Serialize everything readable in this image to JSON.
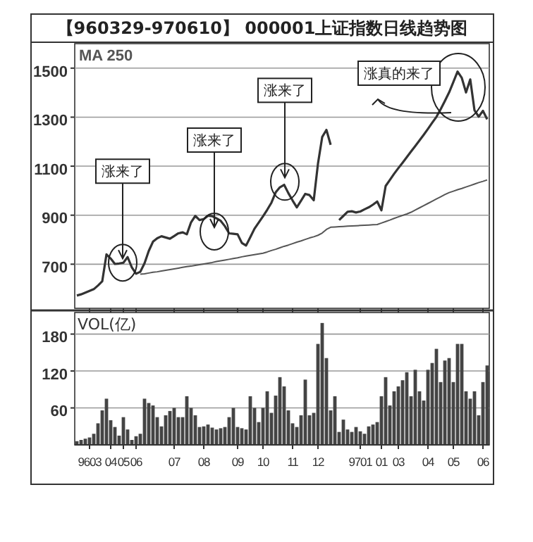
{
  "chart_data": [
    {
      "type": "line",
      "title": "【960329-970610】 000001上证指数日线趋势图",
      "categories": [
        null,
        null,
        null,
        "9603",
        null,
        null,
        null,
        null,
        "04",
        null,
        null,
        "05",
        null,
        null,
        "06",
        null,
        null,
        null,
        null,
        null,
        null,
        null,
        null,
        "07",
        null,
        null,
        null,
        null,
        null,
        null,
        "08",
        null,
        null,
        null,
        null,
        null,
        null,
        null,
        "09",
        null,
        null,
        null,
        null,
        null,
        "10",
        null,
        null,
        null,
        null,
        null,
        null,
        "11",
        null,
        null,
        null,
        null,
        null,
        "12",
        null,
        null,
        null,
        null,
        null,
        null,
        null,
        null,
        null,
        "9701",
        null,
        null,
        null,
        null,
        "01",
        null,
        null,
        null,
        "03",
        null,
        null,
        null,
        null,
        null,
        null,
        "04",
        null,
        null,
        null,
        null,
        null,
        "05",
        null,
        null,
        null,
        null,
        null,
        null,
        "06",
        null
      ],
      "ylim": [
        520,
        1600
      ],
      "yticks": [
        700,
        900,
        1100,
        1300,
        1500
      ],
      "grid": "y",
      "tick_labels": "y",
      "legend": "top left",
      "series": [
        {
          "color": "#333333",
          "values": [
            572,
            577,
            584,
            591,
            598,
            613,
            630,
            740,
            723,
            701,
            703,
            706,
            729,
            687,
            661,
            669,
            704,
            754,
            792,
            806,
            814,
            809,
            804,
            815,
            826,
            830,
            822,
            871,
            897,
            880,
            884,
            898,
            896,
            887,
            877,
            855,
            826,
            824,
            822,
            787,
            776,
            810,
            845,
            870,
            895,
            922,
            951,
            993,
            1014,
            1024,
            990,
            960,
            932,
            959,
            987,
            982,
            961,
            1110,
            1219,
            1248,
            1187,
            null,
            880,
            897,
            914,
            916,
            911,
            915,
            924,
            932,
            943,
            956,
            920,
            1019,
            1044,
            1069,
            1092,
            1114,
            1137,
            1160,
            1182,
            1205,
            1228,
            1252,
            1277,
            1301,
            1332,
            1366,
            1401,
            1443,
            1486,
            1460,
            1401,
            1454,
            1328,
            1302,
            1326,
            1291
          ]
        },
        {
          "name": "MA 250",
          "color": "#555555",
          "values": [
            null,
            null,
            null,
            null,
            null,
            null,
            null,
            null,
            null,
            null,
            null,
            null,
            null,
            null,
            null,
            659,
            661,
            664,
            667,
            669,
            672,
            675,
            678,
            681,
            684,
            687,
            690,
            692,
            695,
            698,
            701,
            704,
            707,
            711,
            714,
            717,
            720,
            723,
            726,
            730,
            733,
            736,
            739,
            742,
            745,
            750,
            756,
            761,
            767,
            773,
            778,
            784,
            790,
            795,
            801,
            807,
            812,
            818,
            827,
            842,
            851,
            852,
            853,
            854,
            855,
            856,
            857,
            858,
            859,
            860,
            861,
            862,
            868,
            874,
            880,
            887,
            893,
            899,
            905,
            912,
            921,
            930,
            939,
            948,
            957,
            966,
            975,
            984,
            992,
            998,
            1004,
            1009,
            1015,
            1021,
            1027,
            1033,
            1038,
            1044
          ]
        }
      ],
      "annotations": [
        {
          "text": "涨来了",
          "y": 706
        },
        {
          "text": "涨来了",
          "y": 833
        },
        {
          "text": "涨来了",
          "y": 1036
        },
        "涨真的来了"
      ]
    },
    {
      "type": "bar",
      "ylabel": "VOL(亿)",
      "color": "#444444",
      "categories": [
        null,
        null,
        null,
        "9603",
        null,
        null,
        null,
        null,
        "04",
        null,
        null,
        "05",
        null,
        null,
        "06",
        null,
        null,
        null,
        null,
        null,
        null,
        null,
        null,
        "07",
        null,
        null,
        null,
        null,
        null,
        null,
        "08",
        null,
        null,
        null,
        null,
        null,
        null,
        null,
        "09",
        null,
        null,
        null,
        null,
        null,
        "10",
        null,
        null,
        null,
        null,
        null,
        null,
        "11",
        null,
        null,
        null,
        null,
        null,
        "12",
        null,
        null,
        null,
        null,
        null,
        null,
        null,
        null,
        null,
        "9701",
        null,
        null,
        null,
        null,
        "01",
        null,
        null,
        null,
        "03",
        null,
        null,
        null,
        null,
        null,
        null,
        "04",
        null,
        null,
        null,
        null,
        null,
        "05",
        null,
        null,
        null,
        null,
        null,
        null,
        "06",
        null
      ],
      "ylim": [
        0,
        215
      ],
      "yticks": [
        60,
        120,
        180
      ],
      "grid": "y",
      "values": [
        6,
        8,
        10,
        12,
        18,
        35,
        56,
        75,
        40,
        29,
        15,
        45,
        25,
        8,
        14,
        18,
        75,
        68,
        64,
        45,
        30,
        48,
        55,
        60,
        45,
        45,
        79,
        60,
        48,
        29,
        30,
        33,
        28,
        25,
        27,
        29,
        45,
        60,
        29,
        27,
        25,
        79,
        60,
        37,
        60,
        87,
        52,
        80,
        110,
        95,
        56,
        35,
        29,
        48,
        106,
        48,
        52,
        164,
        198,
        141,
        56,
        79,
        21,
        41,
        25,
        21,
        29,
        22,
        18,
        30,
        33,
        37,
        79,
        110,
        64,
        87,
        95,
        105,
        118,
        79,
        122,
        87,
        72,
        122,
        133,
        156,
        102,
        137,
        141,
        102,
        164,
        164,
        87,
        75,
        87,
        48,
        102,
        129
      ]
    }
  ]
}
